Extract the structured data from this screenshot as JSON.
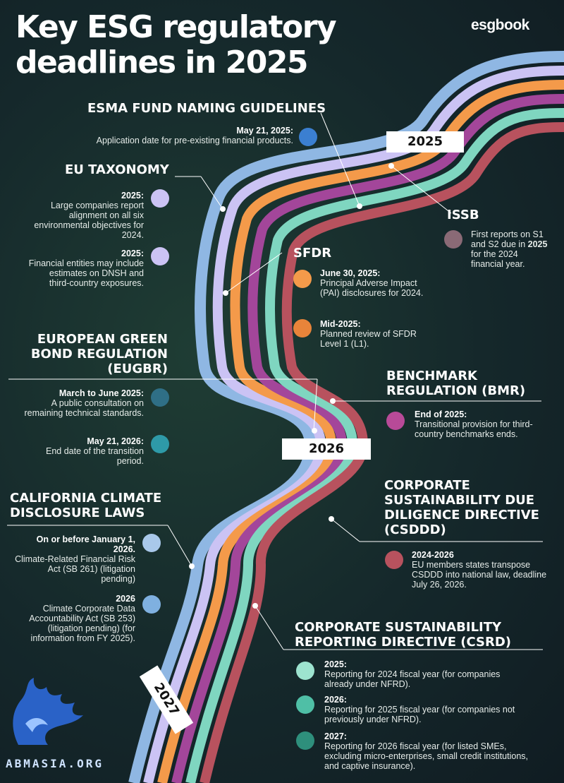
{
  "header": {
    "title_line1": "Key ESG regulatory",
    "title_line2": "deadlines in 2025",
    "brand": "esgbook"
  },
  "years": [
    "2025",
    "2026",
    "2027"
  ],
  "sections": {
    "esma": {
      "title": "ESMA FUND NAMING GUIDELINES",
      "items": [
        {
          "date": "May 21, 2025:",
          "text": "Application date for pre-existing financial products.",
          "color": "#3b7fd1"
        }
      ]
    },
    "eu_taxonomy": {
      "title": "EU TAXONOMY",
      "items": [
        {
          "date": "2025:",
          "text": "Large companies report alignment on all six environmental objectives for 2024.",
          "color": "#cbc3f4"
        },
        {
          "date": "2025:",
          "text": "Financial entities may include estimates on DNSH and third-country exposures.",
          "color": "#cbc3f4"
        }
      ]
    },
    "issb": {
      "title": "ISSB",
      "items": [
        {
          "text_before": "First reports on S1 and S2 due in ",
          "bold": "2025",
          "text_after": " for the 2024 financial year.",
          "color": "#8a6a76"
        }
      ]
    },
    "sfdr": {
      "title": "SFDR",
      "items": [
        {
          "date": "June 30, 2025:",
          "text": "Principal Adverse Impact (PAI) disclosures for 2024.",
          "color": "#f49a4a"
        },
        {
          "date": "Mid-2025:",
          "text": "Planned review of SFDR Level 1 (L1).",
          "color": "#e8843a"
        }
      ]
    },
    "eugbr": {
      "title_line1": "EUROPEAN GREEN",
      "title_line2": "BOND REGULATION",
      "title_line3": "(EUGBR)",
      "items": [
        {
          "date": "March to June 2025:",
          "text": "A public consultation on remaining technical standards.",
          "color": "#2f6f86"
        },
        {
          "date": "May 21, 2026:",
          "text": "End date of the transition period.",
          "color": "#2e9aa8"
        }
      ]
    },
    "bmr": {
      "title_line1": "BENCHMARK",
      "title_line2": "REGULATION (BMR)",
      "items": [
        {
          "date": "End of 2025:",
          "text": "Transitional provision for third-country benchmarks ends.",
          "color": "#b84a98"
        }
      ]
    },
    "california": {
      "title_line1": "CALIFORNIA CLIMATE",
      "title_line2": "DISCLOSURE LAWS",
      "items": [
        {
          "date": "On or before January 1, 2026.",
          "text": "Climate-Related Financial Risk Act (SB 261) (litigation pending)",
          "color": "#a9c8ea"
        },
        {
          "date": "2026",
          "text": "Climate Corporate Data Accountability Act (SB 253) (litigation pending) (for information from FY 2025).",
          "color": "#7fb0e0"
        }
      ]
    },
    "csddd": {
      "title_line1": "CORPORATE",
      "title_line2": "SUSTAINABILITY DUE",
      "title_line3": "DILIGENCE DIRECTIVE",
      "title_line4": "(CSDDD)",
      "items": [
        {
          "date": "2024-2026",
          "text": "EU members states transpose CSDDD into national law, deadline July 26, 2026.",
          "color": "#b8525e"
        }
      ]
    },
    "csrd": {
      "title_line1": "CORPORATE SUSTAINABILITY",
      "title_line2": "REPORTING DIRECTIVE (CSRD)",
      "items": [
        {
          "date": "2025:",
          "text": "Reporting for 2024 fiscal year (for companies already under NFRD).",
          "color": "#9de3cf"
        },
        {
          "date": "2026:",
          "text": "Reporting for 2025 fiscal year (for companies not previously under NFRD).",
          "color": "#4fbfa6"
        },
        {
          "date": "2027:",
          "text": "Reporting for 2026 fiscal year (for listed SMEs, excluding micro-enterprises, small credit institutions, and captive insurance).",
          "color": "#2e8f7c"
        }
      ]
    }
  },
  "watermark": "ABMASIA.ORG",
  "road_colors": [
    "#8fb7e3",
    "#cbc3f4",
    "#f49a4a",
    "#a3469a",
    "#7fd6c0",
    "#b8525e",
    "#2e3b44",
    "#4aa0b5"
  ]
}
